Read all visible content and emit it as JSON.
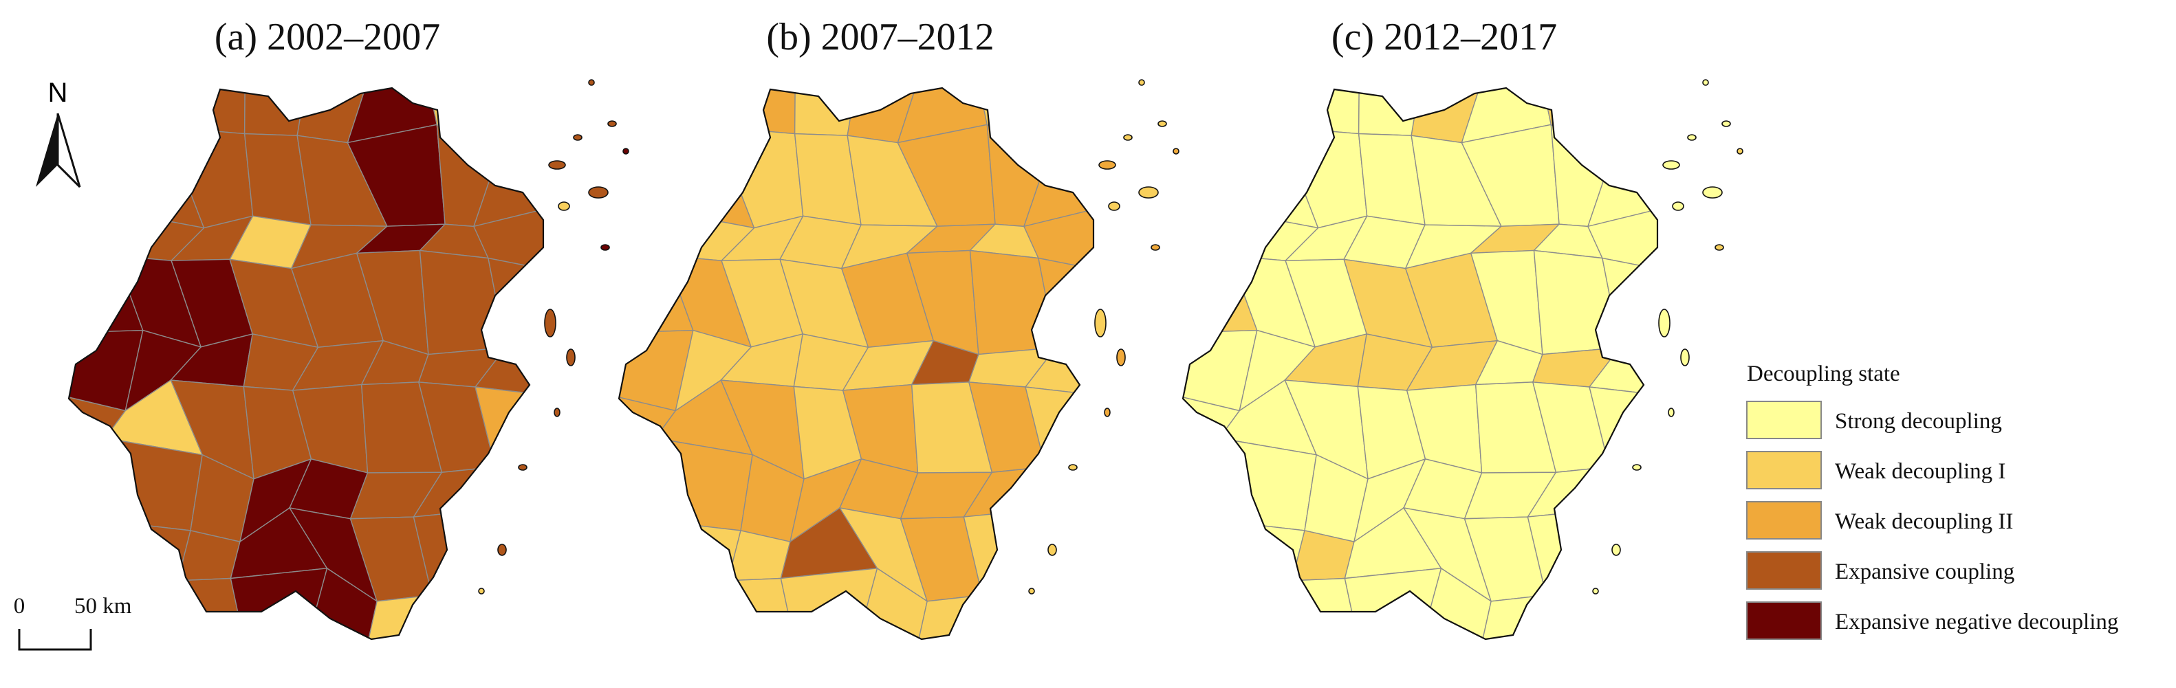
{
  "panels": [
    {
      "title": "(a) 2002–2007"
    },
    {
      "title": "(b) 2007–2012"
    },
    {
      "title": "(c) 2012–2017"
    }
  ],
  "north": "N",
  "scale_bar": {
    "start": "0",
    "end": "50 km"
  },
  "legend": {
    "title": "Decoupling state",
    "items": [
      {
        "label": "Strong decoupling",
        "color": "#ffff99"
      },
      {
        "label": "Weak decoupling I",
        "color": "#f9d05c"
      },
      {
        "label": "Weak decoupling II",
        "color": "#f0a93a"
      },
      {
        "label": "Expansive coupling",
        "color": "#b0561a"
      },
      {
        "label": "Expansive negative decoupling",
        "color": "#6b0303"
      }
    ]
  }
}
